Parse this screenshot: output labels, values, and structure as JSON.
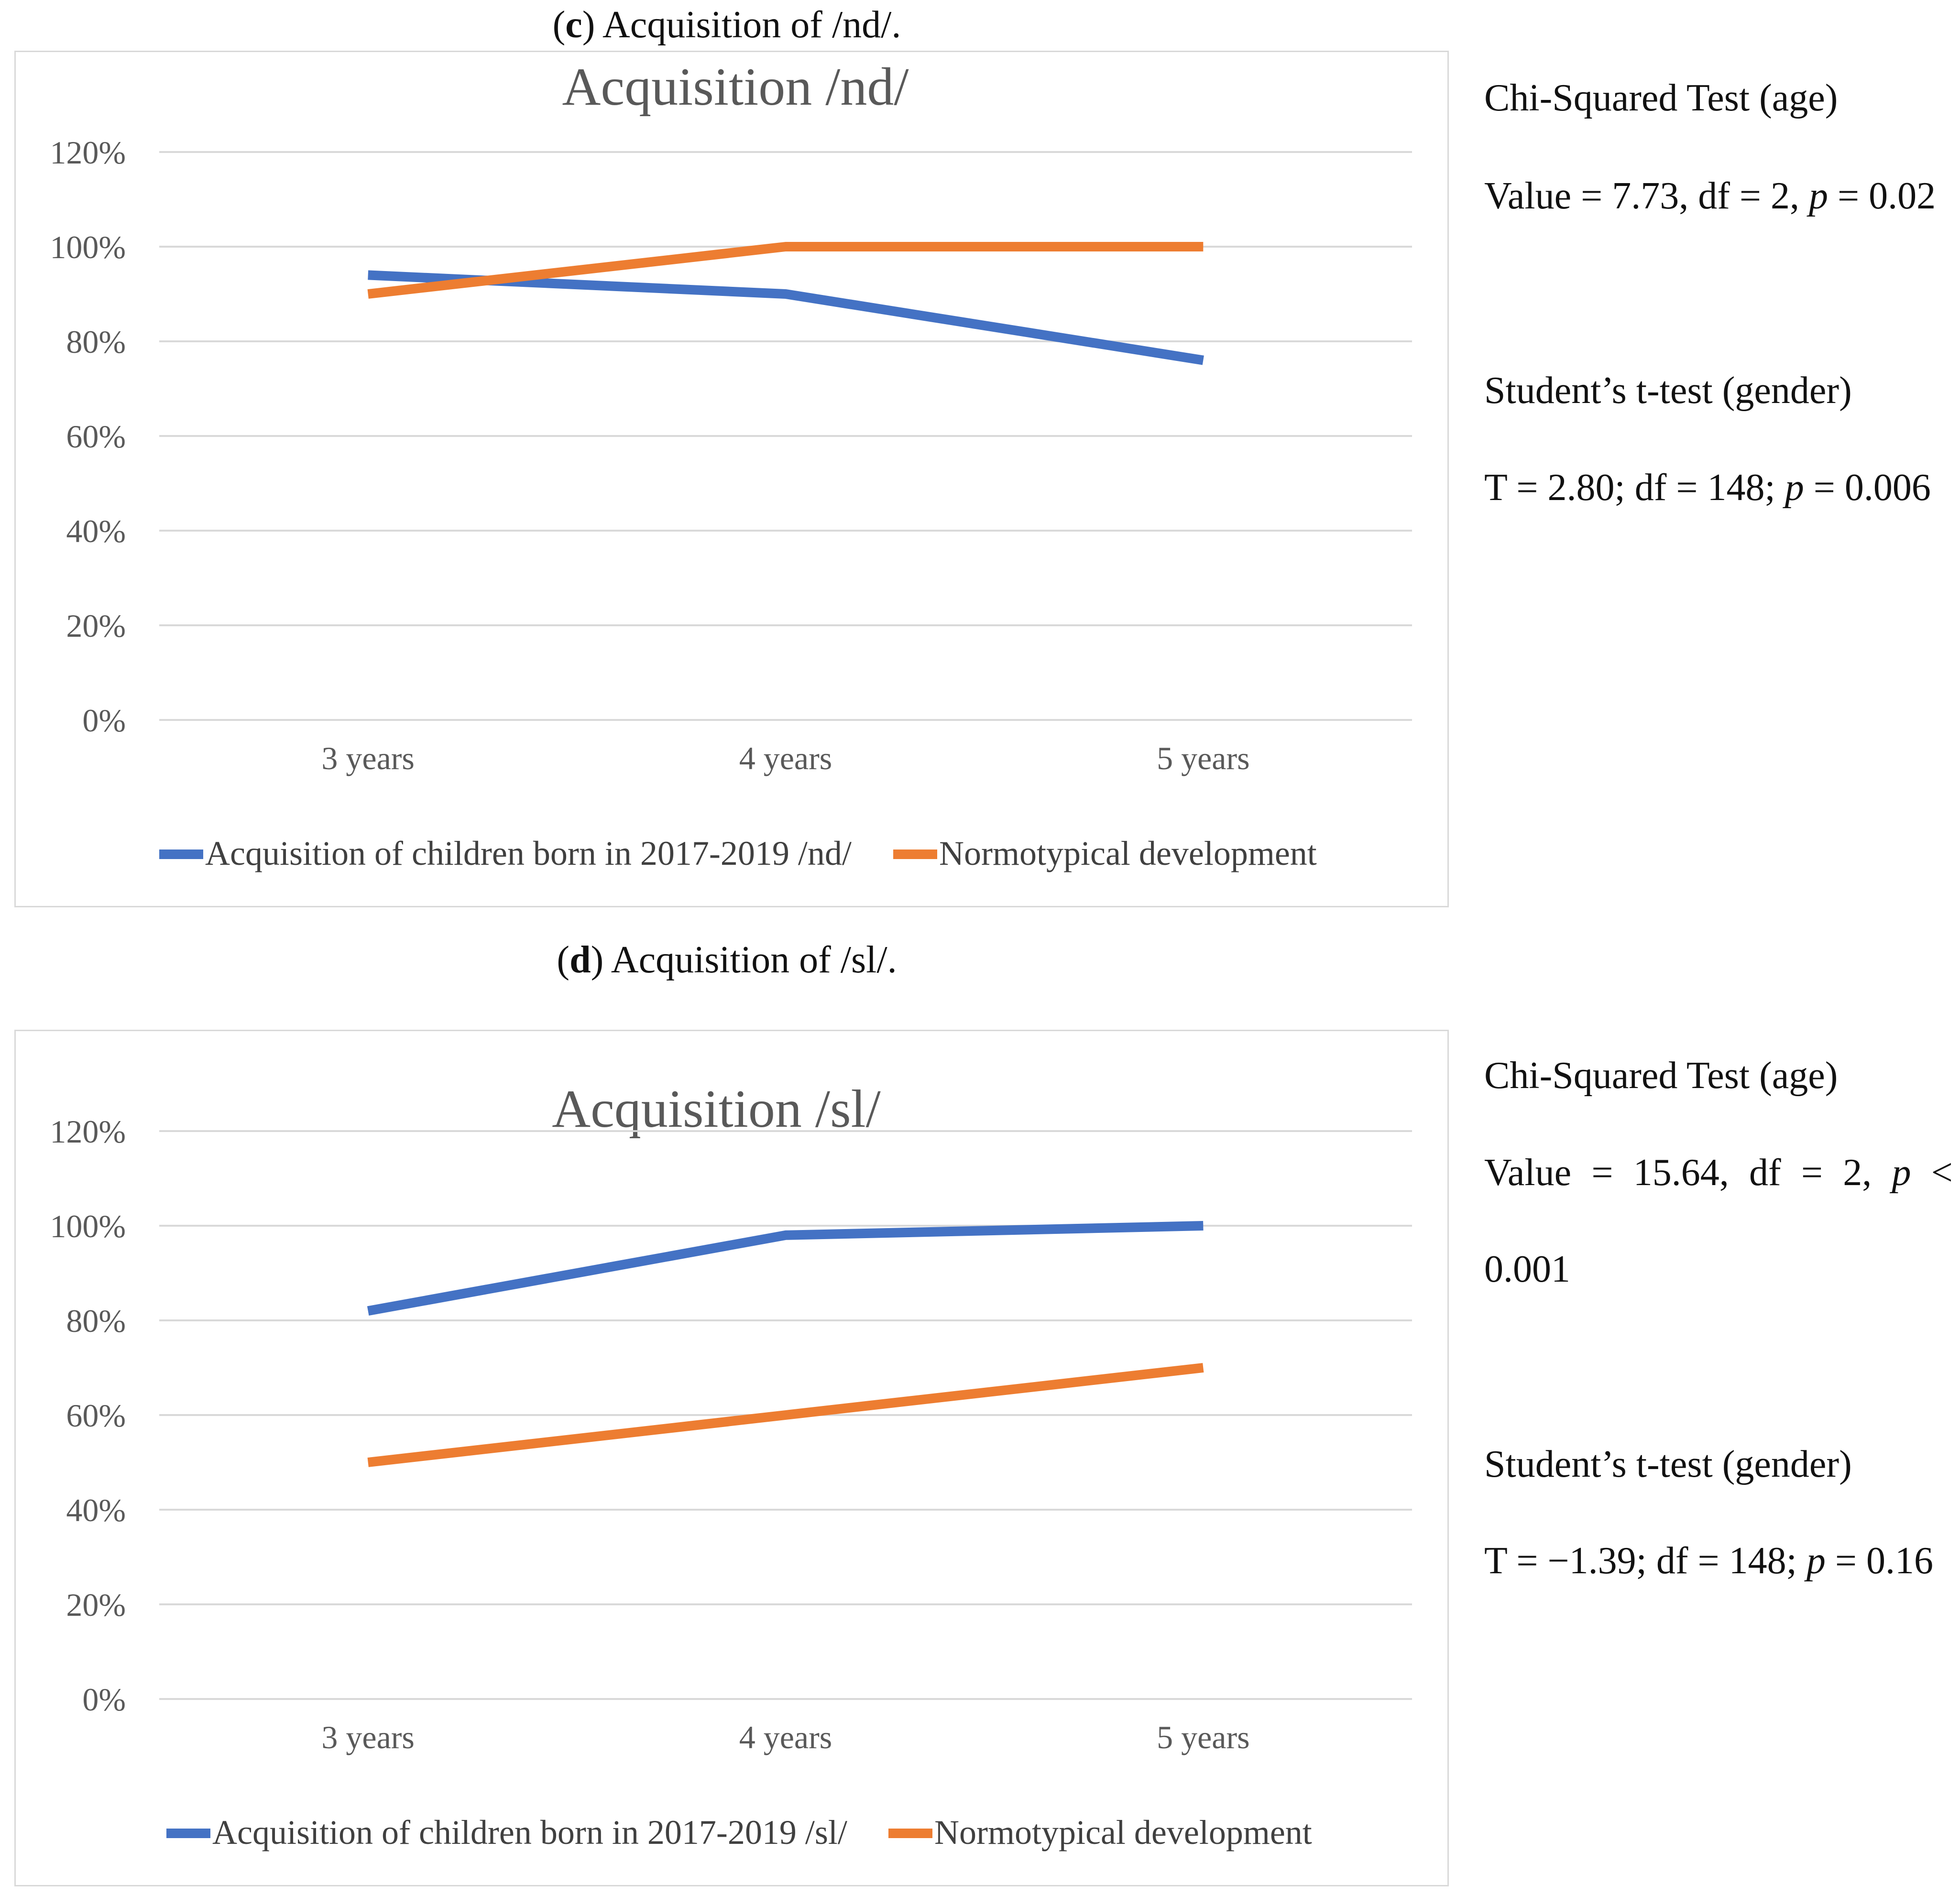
{
  "panels": [
    {
      "caption_letter": "c",
      "caption_text": ") Acquisition of /nd/.",
      "stats": {
        "chi_title": "Chi-Squared Test (age)",
        "chi_prefix": "Value = 7.73, df = 2, ",
        "chi_p_symbol": "p",
        "chi_suffix": " = 0.02",
        "t_title": "Student’s t-test (gender)",
        "t_prefix": "T = 2.80; df = 148; ",
        "t_p_symbol": "p",
        "t_suffix": " = 0.006"
      }
    },
    {
      "caption_letter": "d",
      "caption_text": ") Acquisition of /sl/.",
      "stats": {
        "chi_title": "Chi-Squared Test (age)",
        "chi_parts": [
          "Value",
          "=",
          "15.64,",
          "df",
          "=",
          "2,",
          "p",
          "<"
        ],
        "chi_line2": "0.001",
        "t_title": "Student’s t-test (gender)",
        "t_prefix": "T = −1.39; df = 148; ",
        "t_p_symbol": "p",
        "t_suffix": " = 0.16"
      }
    }
  ],
  "chart_data": [
    {
      "type": "line",
      "title": "Acquisition /nd/",
      "categories": [
        "3 years",
        "4 years",
        "5 years"
      ],
      "series": [
        {
          "name": "Acquisition of children born in 2017-2019 /nd/",
          "color": "#4472c4",
          "values": [
            94,
            90,
            76
          ]
        },
        {
          "name": "Normotypical development",
          "color": "#ed7d31",
          "values": [
            90,
            100,
            100
          ]
        }
      ],
      "ylim": [
        0,
        120
      ],
      "yticks": [
        0,
        20,
        40,
        60,
        80,
        100,
        120
      ],
      "ytick_labels": [
        "0%",
        "20%",
        "40%",
        "60%",
        "80%",
        "100%",
        "120%"
      ],
      "grid": true,
      "legend": "bottom"
    },
    {
      "type": "line",
      "title": "Acquisition /sl/",
      "categories": [
        "3 years",
        "4 years",
        "5 years"
      ],
      "series": [
        {
          "name": "Acquisition of children born in 2017-2019 /sl/",
          "color": "#4472c4",
          "values": [
            82,
            98,
            100
          ]
        },
        {
          "name": "Normotypical development",
          "color": "#ed7d31",
          "values": [
            50,
            60,
            70
          ]
        }
      ],
      "ylim": [
        0,
        120
      ],
      "yticks": [
        0,
        20,
        40,
        60,
        80,
        100,
        120
      ],
      "ytick_labels": [
        "0%",
        "20%",
        "40%",
        "60%",
        "80%",
        "100%",
        "120%"
      ],
      "grid": true,
      "legend": "bottom"
    }
  ]
}
